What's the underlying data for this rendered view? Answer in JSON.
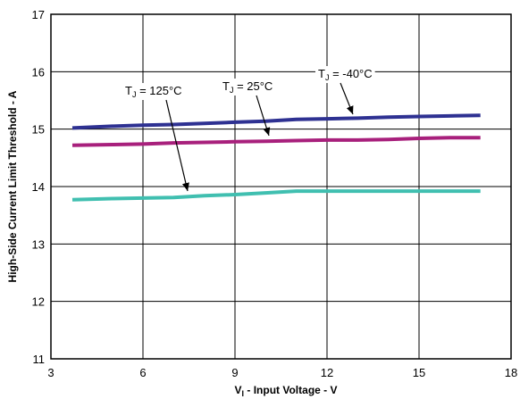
{
  "chart_data": {
    "type": "line",
    "xlabel": {
      "main": "V",
      "sub": "I",
      "rest": " - Input Voltage - V"
    },
    "ylabel": "High-Side Current Limit Threshold - A",
    "xlim": [
      3,
      18
    ],
    "ylim": [
      11,
      17
    ],
    "xticks": [
      3,
      6,
      9,
      12,
      15,
      18
    ],
    "yticks": [
      11,
      12,
      13,
      14,
      15,
      16,
      17
    ],
    "grid": true,
    "x": [
      3.7,
      5,
      6,
      7,
      8,
      9,
      10,
      11,
      12,
      13,
      14,
      15,
      16,
      17
    ],
    "series": [
      {
        "label": {
          "main": "T",
          "sub": "J",
          "rest": " = 125°C"
        },
        "color": "#40bfb0",
        "values": [
          13.77,
          13.79,
          13.8,
          13.81,
          13.84,
          13.86,
          13.89,
          13.92,
          13.92,
          13.92,
          13.92,
          13.92,
          13.92,
          13.92
        ]
      },
      {
        "label": {
          "main": "T",
          "sub": "J",
          "rest": " = 25°C"
        },
        "color": "#a8207c",
        "values": [
          14.72,
          14.73,
          14.74,
          14.76,
          14.77,
          14.78,
          14.79,
          14.8,
          14.81,
          14.81,
          14.82,
          14.84,
          14.85,
          14.85
        ]
      },
      {
        "label": {
          "main": "T",
          "sub": "J",
          "rest": " = -40°C"
        },
        "color": "#2e3192",
        "values": [
          15.02,
          15.05,
          15.07,
          15.08,
          15.1,
          15.12,
          15.14,
          15.17,
          15.18,
          15.19,
          15.21,
          15.22,
          15.23,
          15.24
        ]
      }
    ]
  }
}
